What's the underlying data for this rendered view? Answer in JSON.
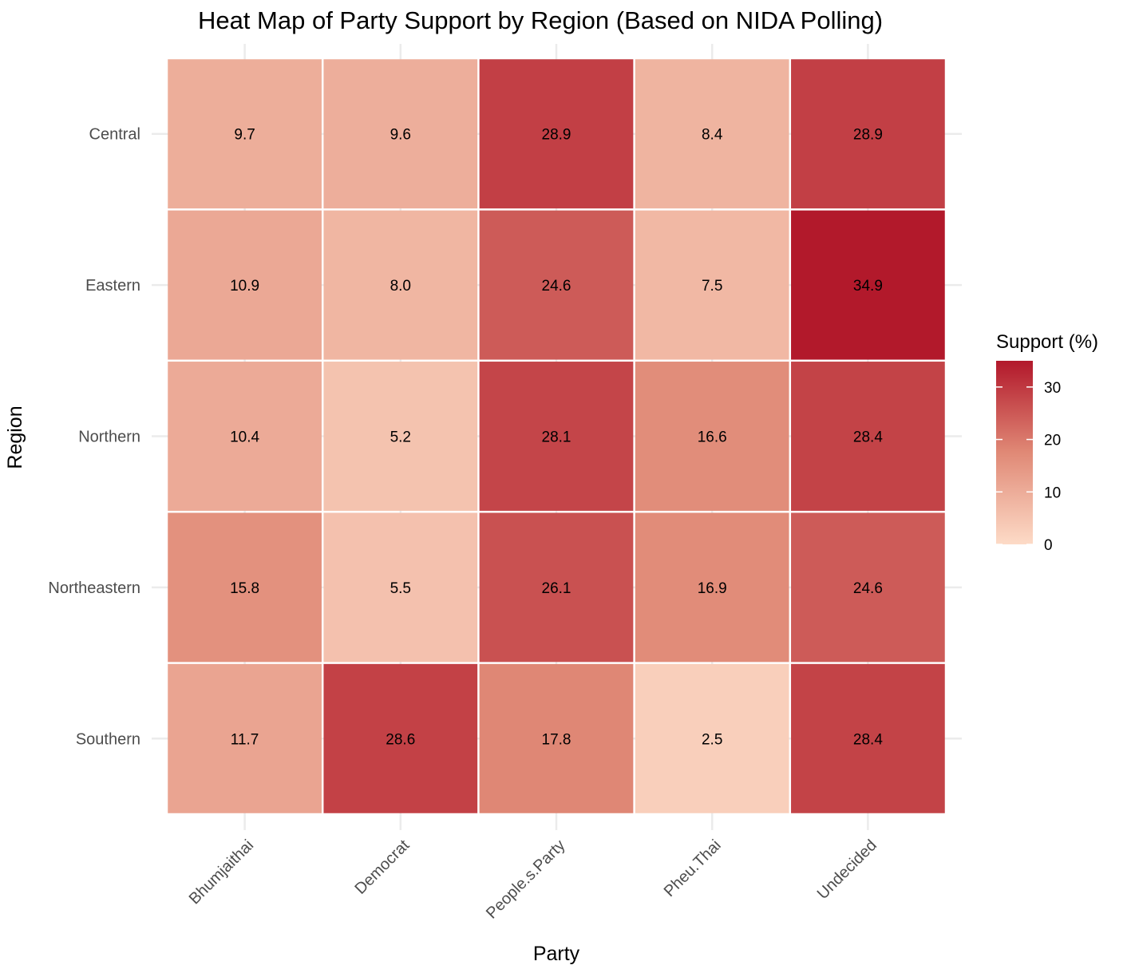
{
  "chart_data": {
    "type": "heatmap",
    "title": "Heat Map of Party Support by Region (Based on NIDA Polling)",
    "xlabel": "Party",
    "ylabel": "Region",
    "x_categories": [
      "Bhumjaithai",
      "Democrat",
      "People.s.Party",
      "Pheu.Thai",
      "Undecided"
    ],
    "y_categories": [
      "Central",
      "Eastern",
      "Northern",
      "Northeastern",
      "Southern"
    ],
    "values": [
      [
        9.7,
        9.6,
        28.9,
        8.4,
        28.9
      ],
      [
        10.9,
        8.0,
        24.6,
        7.5,
        34.9
      ],
      [
        10.4,
        5.2,
        28.1,
        16.6,
        28.4
      ],
      [
        15.8,
        5.5,
        26.1,
        16.9,
        24.6
      ],
      [
        11.7,
        28.6,
        17.8,
        2.5,
        28.4
      ]
    ],
    "value_labels": [
      [
        "9.7",
        "9.6",
        "28.9",
        "8.4",
        "28.9"
      ],
      [
        "10.9",
        "8.0",
        "24.6",
        "7.5",
        "34.9"
      ],
      [
        "10.4",
        "5.2",
        "28.1",
        "16.6",
        "28.4"
      ],
      [
        "15.8",
        "5.5",
        "26.1",
        "16.9",
        "24.6"
      ],
      [
        "11.7",
        "28.6",
        "17.8",
        "2.5",
        "28.4"
      ]
    ],
    "colorbar": {
      "title": "Support (%)",
      "range": [
        0,
        35
      ],
      "ticks": [
        0,
        10,
        20,
        30
      ],
      "tick_labels": [
        "0",
        "10",
        "20",
        "30"
      ],
      "low_color": "#fddbc7",
      "mid_color": "#e08976",
      "high_color": "#b2182b"
    },
    "legend_position": "right",
    "grid": true
  }
}
